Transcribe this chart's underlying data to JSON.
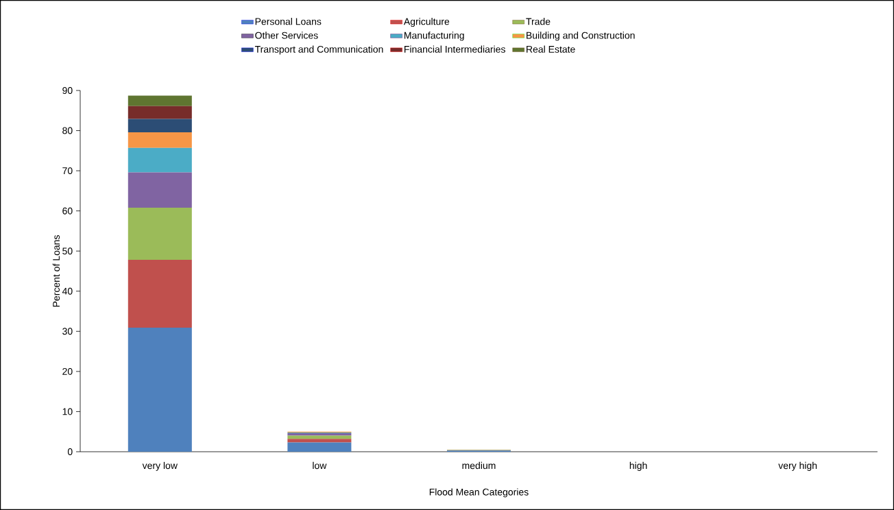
{
  "chart_data": {
    "type": "bar",
    "stacked": true,
    "xlabel": "Flood Mean Categories",
    "ylabel": "Percent of Loans",
    "categories": [
      "very low",
      "low",
      "medium",
      "high",
      "very high"
    ],
    "series": [
      {
        "name": "Personal Loans",
        "color": "#4f81bd",
        "values": [
          30.9,
          2.3,
          0.3,
          0,
          0
        ]
      },
      {
        "name": "Agriculture",
        "color": "#c0504d",
        "values": [
          16.9,
          0.9,
          0.1,
          0,
          0
        ]
      },
      {
        "name": "Trade",
        "color": "#9bbb59",
        "values": [
          13.0,
          0.8,
          0.1,
          0,
          0
        ]
      },
      {
        "name": "Other Services",
        "color": "#8064a2",
        "values": [
          8.8,
          0.6,
          0,
          0,
          0
        ]
      },
      {
        "name": "Manufacturing",
        "color": "#4bacc6",
        "values": [
          6.1,
          0.2,
          0,
          0,
          0
        ]
      },
      {
        "name": "Building and Construction",
        "color": "#f79646",
        "values": [
          3.9,
          0.2,
          0,
          0,
          0
        ]
      },
      {
        "name": "Transport and Communication",
        "color": "#2c4d75",
        "values": [
          3.3,
          0,
          0,
          0,
          0
        ]
      },
      {
        "name": "Financial Intermediaries",
        "color": "#772c2a",
        "values": [
          3.2,
          0,
          0,
          0,
          0
        ]
      },
      {
        "name": "Real Estate",
        "color": "#5f7530",
        "values": [
          2.6,
          0,
          0,
          0,
          0
        ]
      }
    ],
    "ylim": [
      0,
      90
    ],
    "yticks": [
      0,
      10,
      20,
      30,
      40,
      50,
      60,
      70,
      80,
      90
    ],
    "grid": false,
    "legend": "top"
  }
}
